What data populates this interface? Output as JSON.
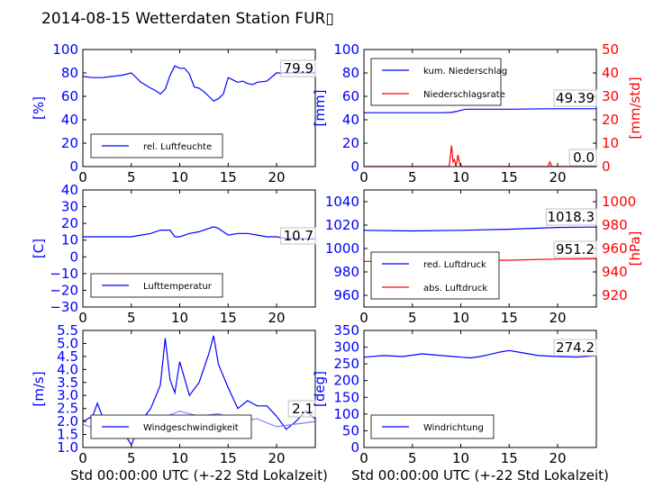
{
  "title": "2014-08-15 Wetterdaten Station FUR▯",
  "colors": {
    "primary": "#0000ff",
    "secondary": "#ff0000",
    "light": "#8080ff"
  },
  "chart_data": [
    {
      "type": "line",
      "ylabel": "[%]",
      "xlim": [
        0,
        24
      ],
      "ylim": [
        0,
        100
      ],
      "xticks": [
        "0",
        "5",
        "10",
        "15",
        "20"
      ],
      "yticks": [
        "0",
        "20",
        "40",
        "60",
        "80",
        "100"
      ],
      "last_value": "79.9",
      "legend_position": "lower-left",
      "series": [
        {
          "name": "rel. Luftfeuchte",
          "color": "#0000ff",
          "x": [
            0,
            1,
            2,
            3,
            4,
            5,
            6,
            7,
            7.5,
            8,
            8.5,
            9,
            9.5,
            10,
            10.5,
            11,
            11.5,
            12,
            12.5,
            13,
            13.5,
            14,
            14.5,
            15,
            15.5,
            16,
            16.5,
            17,
            17.5,
            18,
            19,
            20,
            21,
            22,
            23,
            24
          ],
          "y": [
            77,
            76,
            76,
            77,
            78,
            80,
            72,
            67,
            65,
            62,
            66,
            78,
            86,
            84,
            84,
            79,
            68,
            67,
            64,
            60,
            56,
            58,
            62,
            76,
            74,
            72,
            73,
            71,
            70,
            72,
            73,
            80,
            80,
            80,
            80,
            80
          ]
        }
      ]
    },
    {
      "type": "line",
      "ylabel": "[mm]",
      "ylabel_right": "[mm/std]",
      "xlim": [
        0,
        24
      ],
      "ylim": [
        0,
        100
      ],
      "ylim_right": [
        0,
        50
      ],
      "xticks": [
        "0",
        "5",
        "10",
        "15",
        "20"
      ],
      "yticks": [
        "0",
        "20",
        "40",
        "60",
        "80",
        "100"
      ],
      "yticks_right": [
        "0",
        "10",
        "20",
        "30",
        "40",
        "50"
      ],
      "last_value": "49.39",
      "last_value_right": "0.0",
      "legend_position": "upper-left",
      "series": [
        {
          "name": "kum. Niederschlag",
          "color": "#0000ff",
          "x": [
            0,
            8,
            9,
            9.5,
            10,
            10.5,
            11,
            15,
            19,
            24
          ],
          "y": [
            46,
            46,
            46.2,
            47,
            48,
            49,
            49,
            49,
            49.39,
            49.39
          ]
        },
        {
          "name": "Niederschlagsrate",
          "color": "#ff0000",
          "axis": "right",
          "x": [
            0,
            8.8,
            9.05,
            9.2,
            9.35,
            9.5,
            9.6,
            9.7,
            9.8,
            9.9,
            10.1,
            19,
            19.2,
            19.4,
            24
          ],
          "y": [
            0,
            0,
            9,
            2,
            3,
            0,
            2,
            5,
            3,
            1,
            0,
            0,
            2,
            0,
            0
          ]
        }
      ]
    },
    {
      "type": "line",
      "ylabel": "[C]",
      "xlim": [
        0,
        24
      ],
      "ylim": [
        -30,
        40
      ],
      "xticks": [
        "0",
        "5",
        "10",
        "15",
        "20"
      ],
      "yticks": [
        "−30",
        "−20",
        "−10",
        "0",
        "10",
        "20",
        "30",
        "40"
      ],
      "last_value": "10.7",
      "legend_position": "lower-left",
      "series": [
        {
          "name": "Lufttemperatur",
          "color": "#0000ff",
          "x": [
            0,
            2,
            4,
            5,
            6,
            7,
            8,
            9,
            9.5,
            10,
            11,
            12,
            13,
            13.5,
            14,
            15,
            16,
            17,
            18,
            19,
            20,
            21,
            22,
            23,
            24
          ],
          "y": [
            12,
            12,
            12,
            12,
            13,
            14,
            16,
            16,
            12,
            12,
            14,
            15,
            17,
            18,
            17,
            13,
            14,
            14,
            13,
            12,
            12,
            11,
            11,
            10.7,
            10.7
          ]
        }
      ]
    },
    {
      "type": "line",
      "ylabel": "[hPa]",
      "xlim": [
        0,
        24
      ],
      "ylim": [
        950,
        1050
      ],
      "ylim_right": [
        910,
        1010
      ],
      "xticks": [
        "0",
        "5",
        "10",
        "15",
        "20"
      ],
      "yticks": [
        "960",
        "980",
        "1000",
        "1020",
        "1040"
      ],
      "yticks_right": [
        "920",
        "940",
        "960",
        "980",
        "1000"
      ],
      "last_value": "1018.3",
      "last_value_right": "951.2",
      "legend_position": "lower-left",
      "series": [
        {
          "name": "red. Luftdruck",
          "color": "#0000ff",
          "x": [
            0,
            5,
            10,
            15,
            20,
            24
          ],
          "y": [
            1015.5,
            1015,
            1015.5,
            1016.5,
            1018,
            1018.3
          ]
        },
        {
          "name": "abs. Luftdruck",
          "color": "#ff0000",
          "axis": "right",
          "x": [
            0,
            5,
            10,
            15,
            20,
            24
          ],
          "y": [
            949,
            949,
            949.5,
            950,
            951,
            951.2
          ]
        }
      ]
    },
    {
      "type": "line",
      "ylabel": "[m/s]",
      "xlabel": "Std 00:00:00 UTC (+-22 Std Lokalzeit)",
      "xlim": [
        0,
        24
      ],
      "ylim": [
        1.0,
        5.5
      ],
      "xticks": [
        "0",
        "5",
        "10",
        "15",
        "20"
      ],
      "yticks": [
        "1.0",
        "1.5",
        "2.0",
        "2.5",
        "3.0",
        "3.5",
        "4.0",
        "4.5",
        "5.0",
        "5.5"
      ],
      "last_value": "2.1",
      "legend_position": "lower-left",
      "series": [
        {
          "name": "Windgeschwindigkeit",
          "color": "#0000ff",
          "x": [
            0,
            1,
            1.5,
            2,
            3,
            4,
            4.5,
            5,
            6,
            7,
            8,
            8.5,
            9,
            9.5,
            10,
            11,
            12,
            13,
            13.5,
            14,
            15,
            16,
            17,
            18,
            19,
            20,
            21,
            22,
            23,
            24
          ],
          "y": [
            2.0,
            2.2,
            2.7,
            2.2,
            1.9,
            1.6,
            1.4,
            1.1,
            2.0,
            2.5,
            3.4,
            5.2,
            3.6,
            3.1,
            4.3,
            3.0,
            3.5,
            4.6,
            5.3,
            4.2,
            3.3,
            2.5,
            2.8,
            2.6,
            2.6,
            2.2,
            1.7,
            2.0,
            2.4,
            2.1
          ]
        },
        {
          "color": "#8080ff",
          "x": [
            0,
            2,
            4,
            6,
            8,
            10,
            12,
            14,
            16,
            18,
            20,
            22,
            24
          ],
          "y": [
            1.9,
            1.6,
            1.5,
            2.0,
            2.1,
            2.4,
            2.2,
            2.3,
            2.0,
            2.1,
            1.8,
            1.9,
            2.0
          ]
        }
      ]
    },
    {
      "type": "line",
      "ylabel": "[deg]",
      "xlabel": "Std 00:00:00 UTC (+-22 Std Lokalzeit)",
      "xlim": [
        0,
        24
      ],
      "ylim": [
        0,
        350
      ],
      "xticks": [
        "0",
        "5",
        "10",
        "15",
        "20"
      ],
      "yticks": [
        "0",
        "50",
        "100",
        "150",
        "200",
        "250",
        "300",
        "350"
      ],
      "last_value": "274.2",
      "legend_position": "lower-left",
      "series": [
        {
          "name": "Windrichtung",
          "color": "#0000ff",
          "x": [
            0,
            2,
            4,
            6,
            8,
            10,
            11,
            12,
            13,
            14,
            15,
            16,
            17,
            18,
            20,
            22,
            24
          ],
          "y": [
            270,
            275,
            272,
            280,
            275,
            270,
            268,
            272,
            278,
            285,
            290,
            285,
            280,
            275,
            272,
            270,
            274
          ]
        }
      ]
    }
  ]
}
